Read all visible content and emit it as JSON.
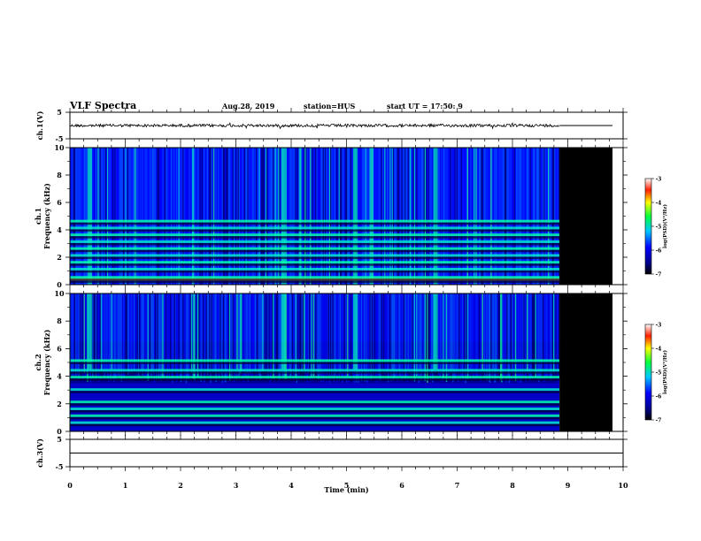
{
  "header": {
    "title": "VLF Spectra",
    "date": "Aug.28, 2019",
    "station": "station=HUS",
    "start": "start UT = 17:50: 9"
  },
  "chart_data": [
    {
      "type": "line",
      "panel": "channel-1-waveform",
      "ylabel": "ch.1(V)",
      "ylim": [
        -5,
        5
      ],
      "yticks": [
        "5",
        "-5"
      ],
      "xlim": [
        0,
        10
      ],
      "series": [
        {
          "x": [
            0,
            8.85
          ],
          "y": [
            0,
            0
          ]
        }
      ]
    },
    {
      "type": "heatmap",
      "panel": "channel-1-spectrogram",
      "ylabel": "ch.1 Frequency (kHz)",
      "ylim": [
        0,
        10
      ],
      "yticks": [
        "0",
        "2",
        "4",
        "6",
        "8",
        "10"
      ],
      "xlim": [
        0,
        10
      ],
      "data_end_min": 8.85,
      "colorbar": {
        "label": "log(PSD)(V²/Hz)",
        "ticks": [
          "-3",
          "-4",
          "-5",
          "-6",
          "-7"
        ],
        "range": [
          -7,
          -3
        ]
      },
      "bands_khz": [
        0.35,
        0.5,
        1.1,
        1.6,
        2.1,
        2.6,
        3.1,
        3.6,
        4.1,
        4.6
      ],
      "bright_columns_min": [
        0.35,
        3.85,
        5.15,
        6.6
      ]
    },
    {
      "type": "heatmap",
      "panel": "channel-2-spectrogram",
      "ylabel": "ch.2 Frequency (kHz)",
      "ylim": [
        0,
        10
      ],
      "yticks": [
        "0",
        "2",
        "4",
        "6",
        "8",
        "10"
      ],
      "xlim": [
        0,
        10
      ],
      "data_end_min": 8.85,
      "colorbar": {
        "label": "log(PSD)(V²/Hz)",
        "ticks": [
          "-3",
          "-4",
          "-5",
          "-6",
          "-7"
        ],
        "range": [
          -7,
          -3
        ]
      },
      "bands_khz": [
        0.6,
        1.1,
        1.6,
        2.1,
        3.0,
        3.9,
        4.4,
        5.1
      ],
      "bright_columns_min": [
        0.35,
        3.85,
        5.15,
        6.6
      ]
    },
    {
      "type": "line",
      "panel": "channel-3-waveform",
      "ylabel": "ch.3(V)",
      "ylim": [
        -5,
        5
      ],
      "yticks": [
        "5",
        "-5"
      ],
      "xlim": [
        0,
        10
      ],
      "xlabel": "Time (min)",
      "xticks": [
        "0",
        "1",
        "2",
        "3",
        "4",
        "5",
        "6",
        "7",
        "8",
        "9",
        "10"
      ],
      "series": [
        {
          "x": [
            0,
            10
          ],
          "y": [
            0,
            0
          ]
        }
      ]
    }
  ]
}
